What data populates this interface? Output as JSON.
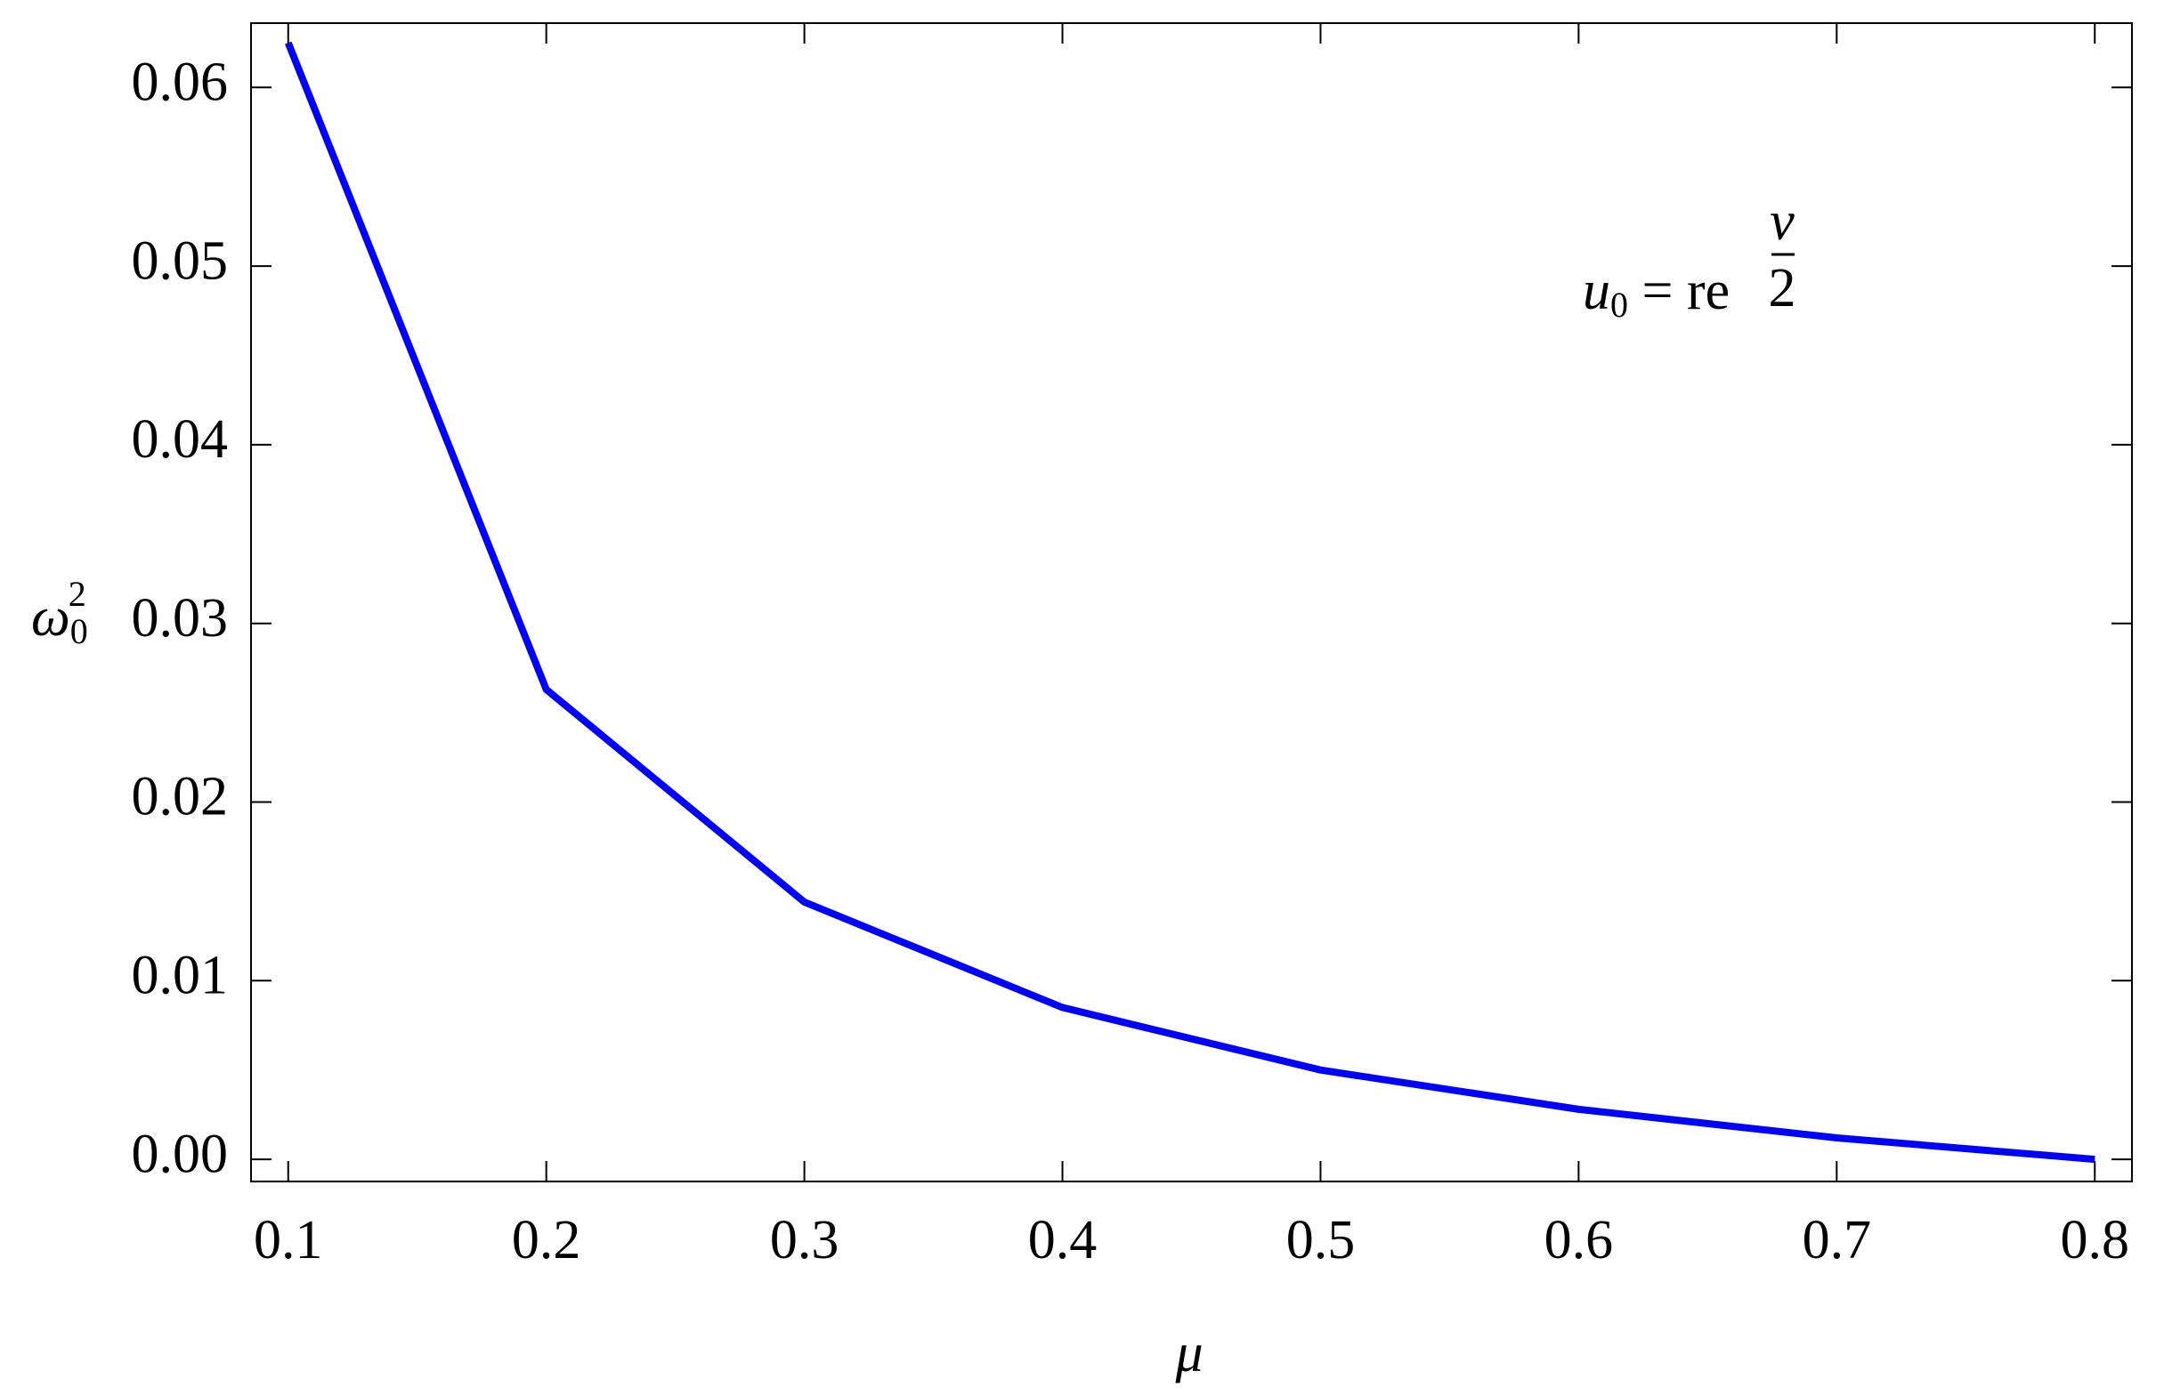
{
  "chart_data": {
    "type": "line",
    "xlabel": "μ",
    "ylabel": {
      "base": "ω",
      "sub": "0",
      "sup": "2"
    },
    "annotation": {
      "base": "u",
      "sub": "0",
      "rest": " = re",
      "num": "ν",
      "den": "2"
    },
    "x": [
      0.1,
      0.2,
      0.3,
      0.4,
      0.5,
      0.6,
      0.7,
      0.8
    ],
    "series": [
      {
        "color": "#0000ff",
        "values": [
          0.0625,
          0.0263,
          0.0144,
          0.0085,
          0.005,
          0.0028,
          0.0012,
          0.0
        ]
      }
    ],
    "xlim": [
      0.0856,
      0.8144
    ],
    "ylim": [
      -0.00124,
      0.0636
    ],
    "xticks": [
      0.1,
      0.2,
      0.3,
      0.4,
      0.5,
      0.6,
      0.7,
      0.8
    ],
    "yticks": [
      {
        "value": 0,
        "label": "0.00"
      },
      0.01,
      0.02,
      0.03,
      0.04,
      0.05,
      0.06
    ],
    "grid": false
  }
}
